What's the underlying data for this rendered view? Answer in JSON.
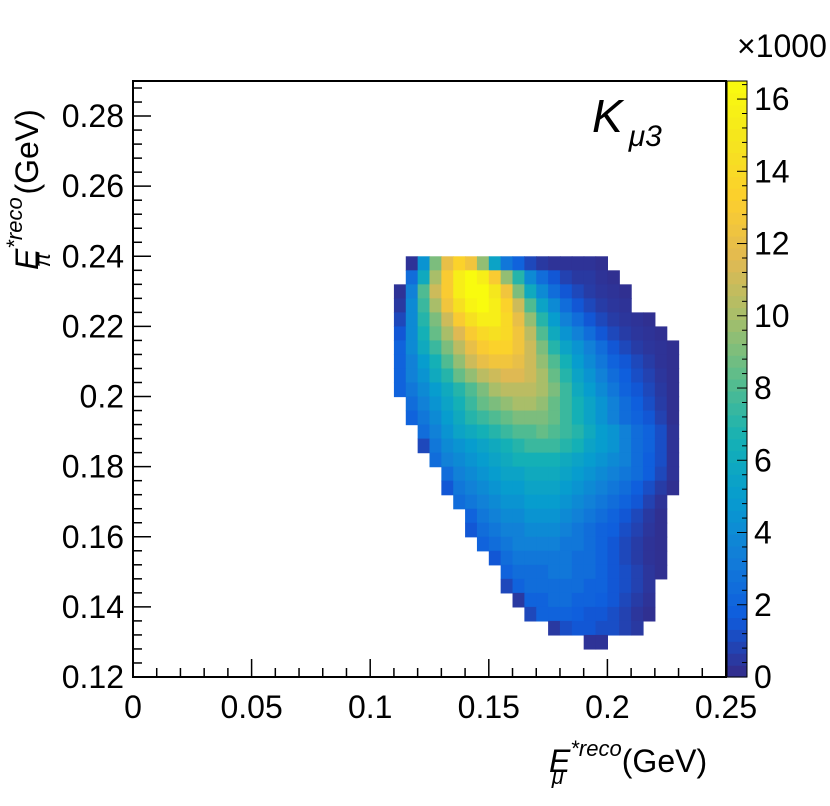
{
  "chart_data": {
    "type": "heatmap",
    "title": "K",
    "title_subscript": "μ3",
    "legend_position": "top-right",
    "xlabel": {
      "symbol": "E",
      "superscript": "*reco",
      "subscript": "μ",
      "unit": "(GeV)"
    },
    "ylabel": {
      "symbol": "E",
      "superscript": "*reco",
      "subscript": "π",
      "unit": "(GeV)"
    },
    "xlim": [
      0,
      0.25
    ],
    "ylim": [
      0.12,
      0.29
    ],
    "x_ticks": [
      0,
      0.05,
      0.1,
      0.15,
      0.2,
      0.25
    ],
    "x_tick_labels": [
      "0",
      "0.05",
      "0.1",
      "0.15",
      "0.2",
      "0.25"
    ],
    "y_ticks": [
      0.12,
      0.14,
      0.16,
      0.18,
      0.2,
      0.22,
      0.24,
      0.26,
      0.28
    ],
    "y_tick_labels": [
      "0.12",
      "0.14",
      "0.16",
      "0.18",
      "0.2",
      "0.22",
      "0.24",
      "0.26",
      "0.28"
    ],
    "colorbar": {
      "multiplier_label": "×1000",
      "range": [
        0,
        16.5
      ],
      "ticks": [
        0,
        2,
        4,
        6,
        8,
        10,
        12,
        14,
        16
      ],
      "tick_labels": [
        "0",
        "2",
        "4",
        "6",
        "8",
        "10",
        "12",
        "14",
        "16"
      ]
    },
    "bin_width_x": 0.005,
    "bin_height_y": 0.004,
    "bins_note": "value units: counts x1000; each row gives ymin (bin lower edge, GeV) and x range of bins with value list",
    "rows": [
      {
        "y": 0.236,
        "x0": 0.115,
        "values": [
          0.3,
          4.5,
          9,
          12,
          13.5,
          12.5,
          9.5,
          5.5,
          3,
          2,
          1,
          0.5,
          0.3,
          0.3,
          0.3,
          0.3,
          0.2
        ]
      },
      {
        "y": 0.232,
        "x0": 0.115,
        "values": [
          2.5,
          6,
          10,
          13,
          15.5,
          16.5,
          15.5,
          13,
          9.5,
          7,
          4,
          2.5,
          1.5,
          0.8,
          0.5,
          0.5,
          0.3,
          0.2
        ]
      },
      {
        "y": 0.228,
        "x0": 0.11,
        "values": [
          0.3,
          3.5,
          8,
          11,
          13,
          15.5,
          16.5,
          16.5,
          15,
          12.5,
          9,
          6,
          4,
          2.5,
          1.5,
          1,
          0.6,
          0.4,
          0.3,
          0.2
        ]
      },
      {
        "y": 0.224,
        "x0": 0.11,
        "values": [
          0.5,
          4,
          7.5,
          10,
          12.5,
          14.5,
          16,
          16.5,
          15.5,
          13.5,
          11,
          8,
          5.5,
          4,
          2.5,
          1.5,
          1,
          0.6,
          0.4,
          0.3
        ]
      },
      {
        "y": 0.22,
        "x0": 0.11,
        "values": [
          1,
          4,
          7,
          9,
          11,
          13,
          14.5,
          15.5,
          15.5,
          14,
          12,
          9.5,
          7,
          5,
          3.5,
          2.5,
          1.5,
          1,
          0.6,
          0.4,
          0.3,
          0.2
        ]
      },
      {
        "y": 0.216,
        "x0": 0.11,
        "values": [
          1.5,
          4,
          6.5,
          8.5,
          10,
          11.5,
          13,
          14,
          14.5,
          14,
          12.5,
          10.5,
          8,
          6,
          4.5,
          3.5,
          2.5,
          1.5,
          1,
          0.6,
          0.4,
          0.3,
          0.2
        ]
      },
      {
        "y": 0.212,
        "x0": 0.11,
        "values": [
          2,
          4,
          6,
          7.5,
          9,
          10.5,
          12,
          13,
          13.5,
          13.5,
          12.5,
          11,
          9,
          7,
          5.5,
          4.5,
          3.5,
          2.5,
          1.5,
          1,
          0.6,
          0.4,
          0.3,
          0.2
        ]
      },
      {
        "y": 0.208,
        "x0": 0.11,
        "values": [
          2,
          3.5,
          5,
          6.5,
          8,
          9.5,
          11,
          12,
          12.5,
          12.5,
          12,
          11,
          9.5,
          8,
          6.5,
          5,
          4,
          3,
          2,
          1.5,
          1,
          0.6,
          0.3,
          0.2
        ]
      },
      {
        "y": 0.204,
        "x0": 0.11,
        "values": [
          2,
          3.5,
          4.5,
          6,
          7,
          8.5,
          9.5,
          10.5,
          11,
          11.5,
          11.5,
          11,
          10,
          8.5,
          7,
          5.5,
          4.5,
          3.5,
          2.5,
          1.8,
          1.2,
          0.8,
          0.4,
          0.2
        ]
      },
      {
        "y": 0.2,
        "x0": 0.11,
        "values": [
          2,
          3,
          4,
          5,
          6,
          7,
          8,
          9,
          10,
          10.5,
          10.5,
          10.5,
          10,
          9,
          7.5,
          6,
          5,
          4,
          3,
          2,
          1.5,
          1,
          0.5,
          0.2
        ]
      },
      {
        "y": 0.196,
        "x0": 0.115,
        "values": [
          2.5,
          3.5,
          4.5,
          5.5,
          6.5,
          7.5,
          8.5,
          9,
          9.5,
          10,
          10,
          9.5,
          8.5,
          7.5,
          6.5,
          5.5,
          4.5,
          3.5,
          2.5,
          1.8,
          1.2,
          0.6,
          0.2
        ]
      },
      {
        "y": 0.192,
        "x0": 0.115,
        "values": [
          2,
          3,
          4,
          5,
          6,
          7,
          7.5,
          8,
          8.5,
          9,
          9,
          9,
          8.5,
          7.5,
          6.5,
          5.5,
          4.5,
          3.5,
          2.5,
          2,
          1.5,
          0.8,
          0.2
        ]
      },
      {
        "y": 0.188,
        "x0": 0.12,
        "values": [
          2.5,
          3.5,
          4.5,
          5.5,
          6,
          6.5,
          7,
          7.5,
          8,
          8,
          8.5,
          8,
          7.5,
          7,
          6,
          5,
          4.5,
          3.5,
          2.5,
          2,
          1.2,
          0.3
        ]
      },
      {
        "y": 0.184,
        "x0": 0.12,
        "values": [
          1,
          3,
          4,
          4.5,
          5,
          5.5,
          6,
          6.5,
          7,
          7.5,
          7.5,
          7.5,
          7,
          6.5,
          5.5,
          5,
          4.5,
          3.5,
          2.5,
          2,
          1.2,
          0.3
        ]
      },
      {
        "y": 0.18,
        "x0": 0.125,
        "values": [
          2.5,
          3.5,
          4,
          4.5,
          5,
          5.5,
          6,
          6.5,
          6.5,
          6.5,
          6.5,
          6,
          5.5,
          5,
          4.5,
          4,
          3.5,
          2.5,
          1.8,
          1.2,
          0.3
        ]
      },
      {
        "y": 0.176,
        "x0": 0.13,
        "values": [
          2.5,
          3.5,
          4,
          4.5,
          5,
          5.5,
          5.5,
          6,
          6,
          6,
          5.5,
          5,
          4.5,
          4,
          3.5,
          3,
          2.5,
          1.8,
          1,
          0.3
        ]
      },
      {
        "y": 0.172,
        "x0": 0.13,
        "values": [
          1.5,
          3,
          3.5,
          4,
          4.5,
          5,
          5,
          5.5,
          5.5,
          5.5,
          5,
          4.5,
          4,
          3.5,
          3,
          2.5,
          1.8,
          1.2,
          0.6,
          0.2
        ]
      },
      {
        "y": 0.168,
        "x0": 0.135,
        "values": [
          2.5,
          3,
          3.5,
          4,
          4.5,
          4.5,
          5,
          5,
          5,
          4.5,
          4,
          3.5,
          3,
          2.5,
          2,
          1.5,
          0.8,
          0.3
        ]
      },
      {
        "y": 0.164,
        "x0": 0.14,
        "values": [
          2,
          3,
          3.5,
          4,
          4,
          4.5,
          4.5,
          4.5,
          4,
          3.5,
          3,
          2.5,
          2,
          1.5,
          1,
          0.5,
          0.2
        ]
      },
      {
        "y": 0.16,
        "x0": 0.14,
        "values": [
          1.5,
          2.5,
          3,
          3.5,
          3.5,
          4,
          4,
          4,
          3.5,
          3,
          2.5,
          2,
          1.8,
          1.2,
          0.8,
          0.4,
          0.2
        ]
      },
      {
        "y": 0.156,
        "x0": 0.145,
        "values": [
          2,
          2.5,
          3,
          3.5,
          3.5,
          3.5,
          3.5,
          3,
          3,
          2.5,
          2,
          1.5,
          1,
          0.6,
          0.3,
          0.2
        ]
      },
      {
        "y": 0.152,
        "x0": 0.15,
        "values": [
          1.5,
          2.5,
          3,
          3,
          3,
          3,
          3,
          2.5,
          2.5,
          2,
          1.5,
          1,
          0.6,
          0.3,
          0.2
        ]
      },
      {
        "y": 0.148,
        "x0": 0.155,
        "values": [
          2,
          2.5,
          2.5,
          2.5,
          3,
          3,
          2.5,
          2.5,
          2,
          1.5,
          1.2,
          0.8,
          0.4,
          0.2
        ]
      },
      {
        "y": 0.144,
        "x0": 0.155,
        "values": [
          1,
          2,
          2.5,
          2.5,
          2.5,
          2.5,
          2.5,
          2,
          2,
          1.5,
          1.2,
          0.8,
          0.4
        ]
      },
      {
        "y": 0.14,
        "x0": 0.16,
        "values": [
          0.5,
          2,
          2,
          2.5,
          2.5,
          2,
          2,
          1.8,
          1.5,
          1,
          0.6,
          0.3
        ]
      },
      {
        "y": 0.136,
        "x0": 0.165,
        "values": [
          1,
          2,
          2,
          2,
          1.8,
          1.5,
          1.5,
          1.2,
          0.8,
          0.4,
          0.2
        ]
      },
      {
        "y": 0.132,
        "x0": 0.175,
        "values": [
          0.5,
          1.2,
          1.5,
          1.5,
          1.2,
          1.2,
          0.8,
          0.5
        ]
      },
      {
        "y": 0.128,
        "x0": 0.19,
        "values": [
          0.3,
          0.3
        ]
      }
    ]
  }
}
